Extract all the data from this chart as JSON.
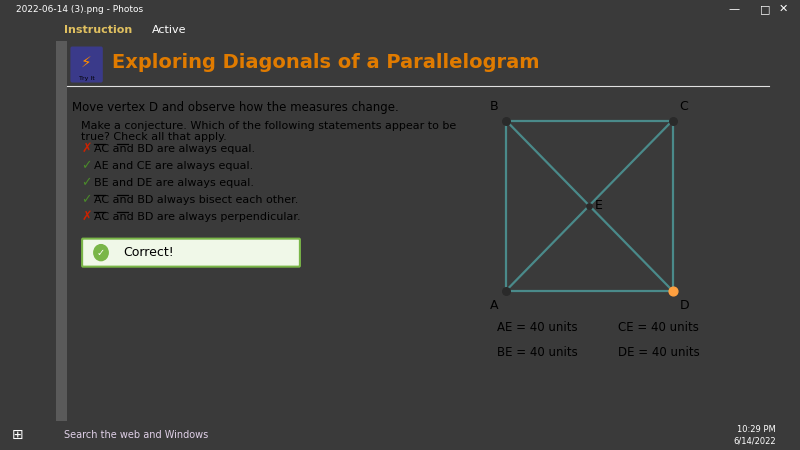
{
  "title": "Exploring Diagonals of a Parallelogram",
  "title_color": "#E07B00",
  "outer_bg": "#3A3A3A",
  "content_bg": "#FFFFFF",
  "header_bg": "#2A2A2A",
  "titlebar_bg": "#1A1A1A",
  "move_text": "Move vertex D and observe how the measures change.",
  "conjecture_text": "Make a conjecture. Which of the following statements appear to be\ntrue? Check all that apply.",
  "statements": [
    {
      "text": "AC and BD are always equal.",
      "correct": false
    },
    {
      "text": "AE and CE are always equal.",
      "correct": true
    },
    {
      "text": "BE and DE are always equal.",
      "correct": true
    },
    {
      "text": "AC and BD always bisect each other.",
      "correct": true
    },
    {
      "text": "AC and BD are always perpendicular.",
      "correct": false
    }
  ],
  "para_color": "#4A8A8A",
  "measurements": [
    [
      "AE = 40 units",
      "CE = 40 units"
    ],
    [
      "BE = 40 units",
      "DE = 40 units"
    ]
  ],
  "correct_text": "Correct!",
  "correct_bg": "#F0F8E8",
  "correct_border": "#7AB648",
  "taskbar_bg": "#9B4080",
  "taskbar_search": "Search the web and Windows",
  "winbar_title": "2022-06-14 (3).png - Photos",
  "nav_text1": "Instruction",
  "nav_text2": "Active",
  "icon_bg": "#3A3A8A",
  "try_it": "Try It",
  "time_text": "10:29 PM",
  "date_text": "6/14/2022"
}
